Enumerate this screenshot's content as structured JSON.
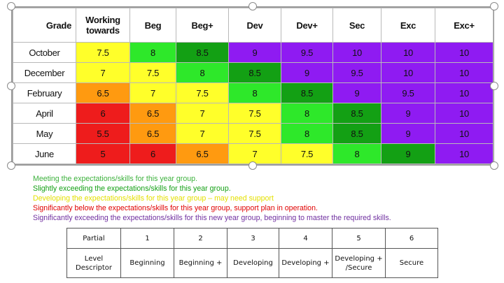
{
  "colors": {
    "red": "#ee1c1c",
    "orange": "#ff9a10",
    "yellow": "#ffff2a",
    "light_green": "#2ee82a",
    "dark_green": "#13a014",
    "purple": "#8f1bf2",
    "legend_green": "#3db23d",
    "legend_yellow": "#e4e000",
    "legend_red": "#e00000",
    "legend_purple": "#7030a0"
  },
  "grade_grid": {
    "header": {
      "corner": "Grade",
      "levels": [
        {
          "line1": "Working",
          "line2": "towards"
        },
        {
          "line1": "Beg",
          "line2": ""
        },
        {
          "line1": "Beg+",
          "line2": ""
        },
        {
          "line1": "Dev",
          "line2": ""
        },
        {
          "line1": "Dev+",
          "line2": ""
        },
        {
          "line1": "Sec",
          "line2": ""
        },
        {
          "line1": "Exc",
          "line2": ""
        },
        {
          "line1": "Exc+",
          "line2": ""
        }
      ]
    },
    "rows": [
      {
        "month": "October",
        "values": [
          "7.5",
          "8",
          "8.5",
          "9",
          "9.5",
          "10",
          "10",
          "10"
        ],
        "colors": [
          "yellow",
          "light_green",
          "dark_green",
          "purple",
          "purple",
          "purple",
          "purple",
          "purple"
        ]
      },
      {
        "month": "December",
        "values": [
          "7",
          "7.5",
          "8",
          "8.5",
          "9",
          "9.5",
          "10",
          "10"
        ],
        "colors": [
          "yellow",
          "yellow",
          "light_green",
          "dark_green",
          "purple",
          "purple",
          "purple",
          "purple"
        ]
      },
      {
        "month": "February",
        "values": [
          "6.5",
          "7",
          "7.5",
          "8",
          "8.5",
          "9",
          "9.5",
          "10"
        ],
        "colors": [
          "orange",
          "yellow",
          "yellow",
          "light_green",
          "dark_green",
          "purple",
          "purple",
          "purple"
        ]
      },
      {
        "month": "April",
        "values": [
          "6",
          "6.5",
          "7",
          "7.5",
          "8",
          "8.5",
          "9",
          "10"
        ],
        "colors": [
          "red",
          "orange",
          "yellow",
          "yellow",
          "light_green",
          "dark_green",
          "purple",
          "purple"
        ]
      },
      {
        "month": "May",
        "values": [
          "5.5",
          "6.5",
          "7",
          "7.5",
          "8",
          "8.5",
          "9",
          "10"
        ],
        "colors": [
          "red",
          "orange",
          "yellow",
          "yellow",
          "light_green",
          "dark_green",
          "purple",
          "purple"
        ]
      },
      {
        "month": "June",
        "values": [
          "5",
          "6",
          "6.5",
          "7",
          "7.5",
          "8",
          "9",
          "10"
        ],
        "colors": [
          "red",
          "red",
          "orange",
          "yellow",
          "yellow",
          "light_green",
          "dark_green",
          "purple"
        ]
      }
    ]
  },
  "legend": [
    {
      "text": "Meeting the expectations/skills for this year group.",
      "color": "legend_green"
    },
    {
      "text": "Slightly exceeding the expectations/skills for this year group.",
      "color": "dark_green"
    },
    {
      "text": "Developing the expectations/skills for this year group – may need support",
      "color": "legend_yellow"
    },
    {
      "text": "Significantly below the expectations/skills for this year group, support plan in operation.",
      "color": "legend_red"
    },
    {
      "text": "Significantly exceeding the expectations/skills for this new year group, beginning to master the required skills.",
      "color": "legend_purple"
    }
  ],
  "descriptor_table": {
    "row1": [
      "Partial",
      "1",
      "2",
      "3",
      "4",
      "5",
      "6"
    ],
    "row2": [
      "Level Descriptor",
      "Beginning",
      "Beginning +",
      "Developing",
      "Developing +",
      "Developing + /Secure",
      "Secure"
    ]
  }
}
